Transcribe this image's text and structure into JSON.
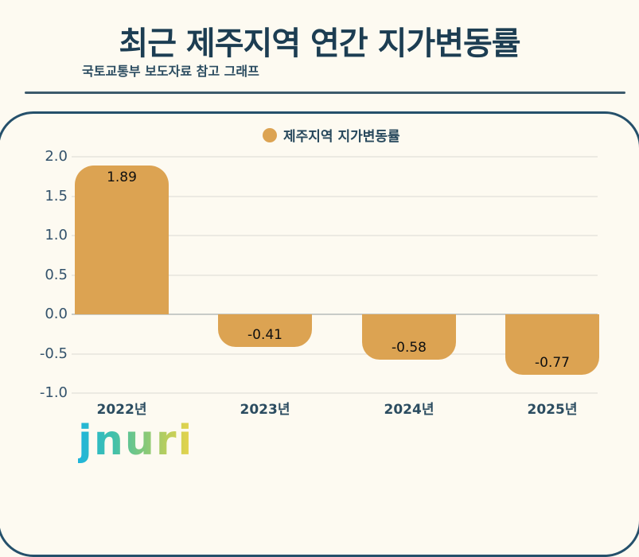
{
  "header": {
    "title": "최근 제주지역 연간 지가변동률",
    "subtitle": "국토교통부 보도자료 참고 그래프"
  },
  "chart_data": {
    "type": "bar",
    "title": "최근 제주지역 연간 지가변동률",
    "subtitle": "국토교통부 보도자료 참고 그래프",
    "legend": [
      "제주지역 지가변동률"
    ],
    "legend_position": "top",
    "categories": [
      "2022년",
      "2023년",
      "2024년",
      "2025년"
    ],
    "values": [
      1.89,
      -0.41,
      -0.58,
      -0.77
    ],
    "value_labels": [
      "1.89",
      "-0.41",
      "-0.58",
      "-0.77"
    ],
    "yticks": [
      "2.0",
      "1.5",
      "1.0",
      "0.5",
      "0.0",
      "-0.5",
      "-1.0"
    ],
    "ytick_values": [
      2.0,
      1.5,
      1.0,
      0.5,
      0.0,
      -0.5,
      -1.0
    ],
    "ylim": [
      -1.0,
      2.0
    ],
    "grid": true,
    "bar_color": "#DCA352",
    "accent_color": "#1C3D52"
  },
  "footer": {
    "logo_text": "jnuri"
  }
}
